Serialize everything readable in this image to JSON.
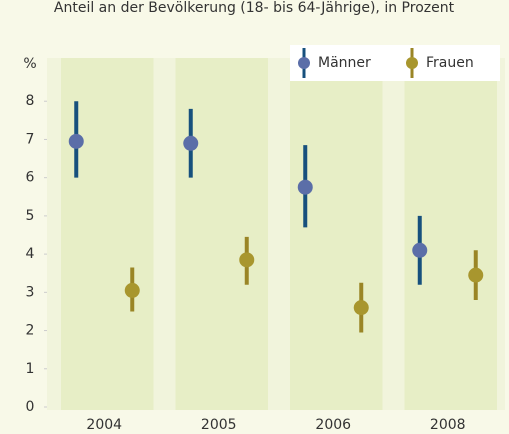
{
  "chart_data": {
    "type": "errorbar",
    "subtitle": "Anteil an der Bevölkerung (18- bis 64-Jährige), in Prozent",
    "y_unit": "%",
    "categories": [
      "2004",
      "2005",
      "2006",
      "2008"
    ],
    "series": [
      {
        "name": "Männer",
        "color": "#5b6ea8",
        "bar_color": "#17507d",
        "values": [
          6.95,
          6.9,
          5.75,
          4.1
        ],
        "low": [
          6.0,
          6.0,
          4.7,
          3.2
        ],
        "high": [
          8.0,
          7.8,
          6.85,
          5.0
        ]
      },
      {
        "name": "Frauen",
        "color": "#a8962e",
        "bar_color": "#9a8526",
        "values": [
          3.05,
          3.85,
          2.6,
          3.45
        ],
        "low": [
          2.5,
          3.2,
          1.95,
          2.8
        ],
        "high": [
          3.65,
          4.45,
          3.25,
          4.1
        ]
      }
    ],
    "ylim": [
      0,
      9
    ],
    "yticks": [
      0,
      1,
      2,
      3,
      4,
      5,
      6,
      7,
      8
    ],
    "legend": "top-right"
  }
}
